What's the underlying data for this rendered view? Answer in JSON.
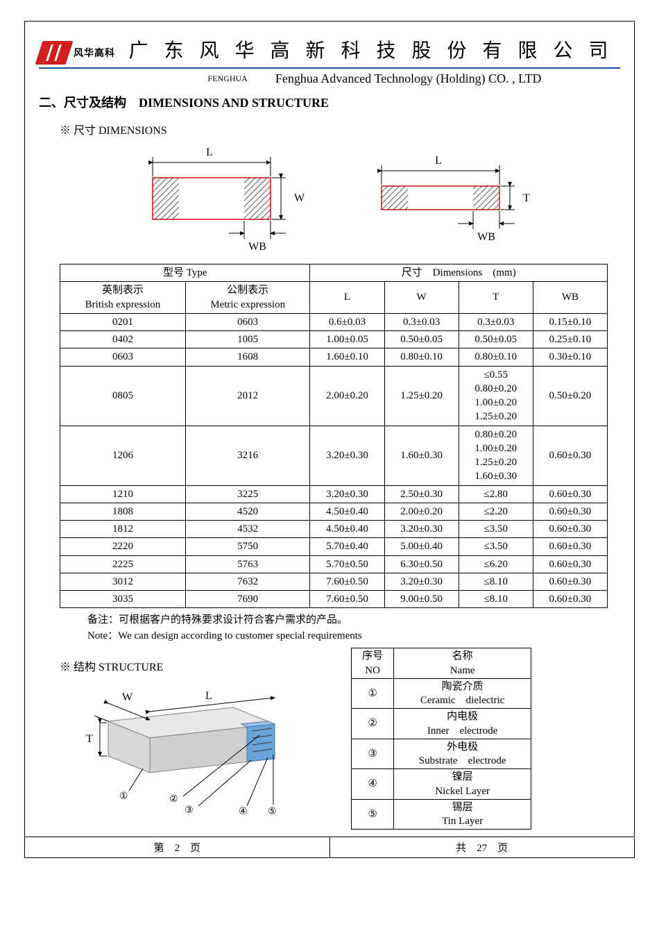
{
  "header": {
    "logo_text": "风华高科",
    "company_cn": "广 东 风 华 高 新 科 技 股 份 有 限 公 司",
    "pinyin": "FENGHUA",
    "company_en": "Fenghua Advanced Technology (Holding) CO. , LTD"
  },
  "section_title": "二、尺寸及结构　DIMENSIONS AND STRUCTURE",
  "dim_subtitle": "※ 尺寸 DIMENSIONS",
  "struct_subtitle": "※ 结构 STRUCTURE",
  "diagram_labels": {
    "L": "L",
    "W": "W",
    "T": "T",
    "WB": "WB"
  },
  "dim_table": {
    "head_type": "型号 Type",
    "head_dims": "尺寸　Dimensions　(mm)",
    "col_british_cn": "英制表示",
    "col_british_en": "British expression",
    "col_metric_cn": "公制表示",
    "col_metric_en": "Metric expression",
    "col_L": "L",
    "col_W": "W",
    "col_T": "T",
    "col_WB": "WB",
    "rows": [
      {
        "br": "0201",
        "me": "0603",
        "L": "0.6±0.03",
        "W": "0.3±0.03",
        "T": "0.3±0.03",
        "WB": "0.15±0.10"
      },
      {
        "br": "0402",
        "me": "1005",
        "L": "1.00±0.05",
        "W": "0.50±0.05",
        "T": "0.50±0.05",
        "WB": "0.25±0.10"
      },
      {
        "br": "0603",
        "me": "1608",
        "L": "1.60±0.10",
        "W": "0.80±0.10",
        "T": "0.80±0.10",
        "WB": "0.30±0.10"
      },
      {
        "br": "0805",
        "me": "2012",
        "L": "2.00±0.20",
        "W": "1.25±0.20",
        "T": "≤0.55\n0.80±0.20\n1.00±0.20\n1.25±0.20",
        "WB": "0.50±0.20"
      },
      {
        "br": "1206",
        "me": "3216",
        "L": "3.20±0.30",
        "W": "1.60±0.30",
        "T": "0.80±0.20\n1.00±0.20\n1.25±0.20\n1.60±0.30",
        "WB": "0.60±0.30"
      },
      {
        "br": "1210",
        "me": "3225",
        "L": "3.20±0.30",
        "W": "2.50±0.30",
        "T": "≤2.80",
        "WB": "0.60±0.30"
      },
      {
        "br": "1808",
        "me": "4520",
        "L": "4.50±0.40",
        "W": "2.00±0.20",
        "T": "≤2.20",
        "WB": "0.60±0.30"
      },
      {
        "br": "1812",
        "me": "4532",
        "L": "4.50±0.40",
        "W": "3.20±0.30",
        "T": "≤3.50",
        "WB": "0.60±0.30"
      },
      {
        "br": "2220",
        "me": "5750",
        "L": "5.70±0.40",
        "W": "5.00±0.40",
        "T": "≤3.50",
        "WB": "0.60±0.30"
      },
      {
        "br": "2225",
        "me": "5763",
        "L": "5.70±0.50",
        "W": "6.30±0.50",
        "T": "≤6.20",
        "WB": "0.60±0.30"
      },
      {
        "br": "3012",
        "me": "7632",
        "L": "7.60±0.50",
        "W": "3.20±0.30",
        "T": "≤8.10",
        "WB": "0.60±0.30"
      },
      {
        "br": "3035",
        "me": "7690",
        "L": "7.60±0.50",
        "W": "9.00±0.50",
        "T": "≤8.10",
        "WB": "0.60±0.30"
      }
    ]
  },
  "notes": {
    "cn": "备注：可根据客户的特殊要求设计符合客户需求的产品。",
    "en": "Note：We can design according to customer special requirements"
  },
  "struct_table": {
    "col_no_cn": "序号",
    "col_no_en": "NO",
    "col_name_cn": "名称",
    "col_name_en": "Name",
    "rows": [
      {
        "n": "①",
        "cn": "陶瓷介质",
        "en": "Ceramic　dielectric"
      },
      {
        "n": "②",
        "cn": "内电极",
        "en": "Inner　electrode"
      },
      {
        "n": "③",
        "cn": "外电极",
        "en": "Substrate　electrode"
      },
      {
        "n": "④",
        "cn": "镍层",
        "en": "Nickel Layer"
      },
      {
        "n": "⑤",
        "cn": "锡层",
        "en": "Tin Layer"
      }
    ]
  },
  "footer": {
    "page_label_prefix": "第",
    "page_num": "2",
    "page_label_suffix": "页",
    "total_prefix": "共",
    "total_num": "27",
    "total_suffix": "页"
  },
  "colors": {
    "header_rule": "#1850a0",
    "logo": "#d02020",
    "diagram_red": "#cc0000",
    "structure_blue": "#6aa3d8",
    "structure_body_fill": "#d8d8d8",
    "structure_body_stroke": "#808080"
  }
}
